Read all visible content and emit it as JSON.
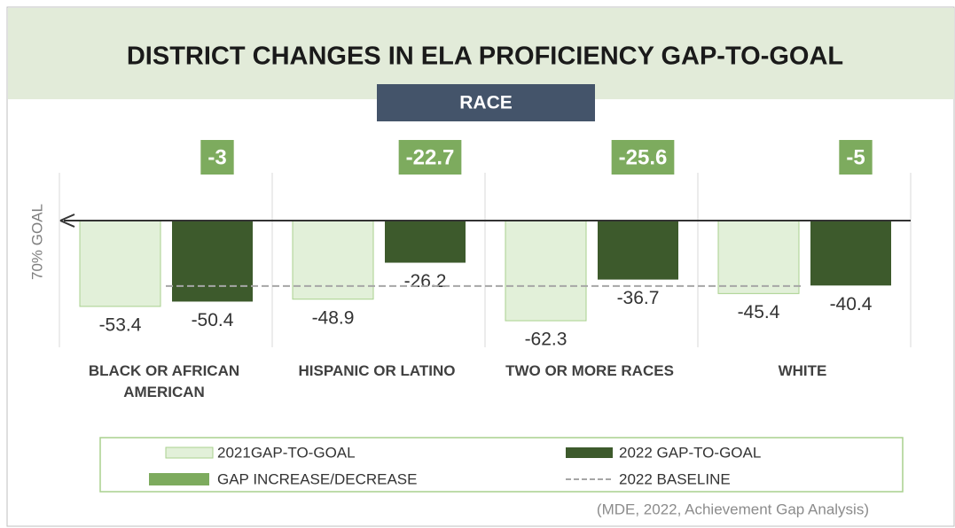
{
  "chart_data": {
    "type": "bar",
    "title": "DISTRICT CHANGES IN ELA PROFICIENCY GAP-TO-GOAL",
    "subtitle": "RACE",
    "y_label": "70% GOAL",
    "categories": [
      "BLACK OR AFRICAN AMERICAN",
      "HISPANIC OR LATINO",
      "TWO OR MORE RACES",
      "WHITE"
    ],
    "series": [
      {
        "name": "2021GAP-TO-GOAL",
        "color": "#e2f0d9",
        "values": [
          -53.4,
          -48.9,
          -62.3,
          -45.4
        ]
      },
      {
        "name": "2022 GAP-TO-GOAL",
        "color": "#3d5a2c",
        "values": [
          -50.4,
          -26.2,
          -36.7,
          -40.4
        ]
      }
    ],
    "gap": {
      "name": "GAP INCREASE/DECREASE",
      "color": "#7dab5e",
      "values": [
        -3,
        -22.7,
        -25.6,
        -5
      ]
    },
    "baseline": {
      "name": "2022 BASELINE",
      "color": "#a6a6a6",
      "value": -40.7
    },
    "ylim": [
      -70,
      0
    ],
    "source": "(MDE, 2022, Achievement Gap Analysis)"
  }
}
